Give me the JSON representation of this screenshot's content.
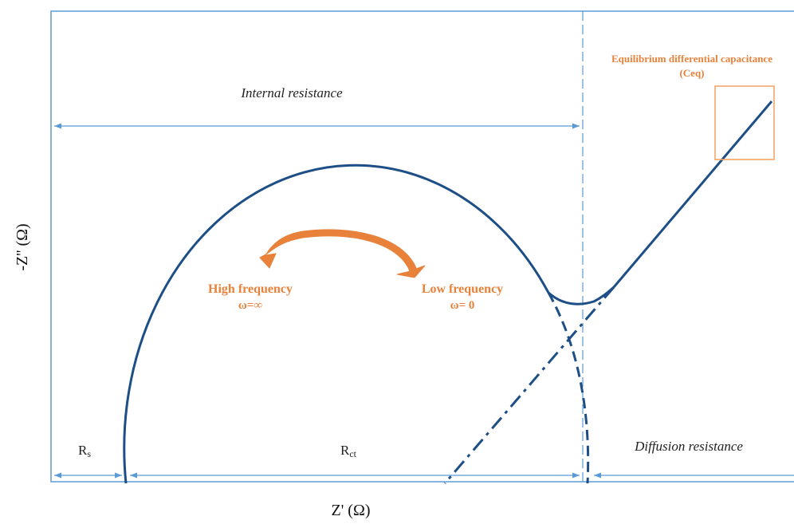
{
  "axes": {
    "x_label": "Z' (Ω)",
    "y_label": "-Z'' (Ω)"
  },
  "regions": {
    "internal_resistance": "Internal resistance",
    "diffusion_resistance": "Diffusion resistance",
    "rs": {
      "main": "R",
      "sub": "s"
    },
    "rct": {
      "main": "R",
      "sub": "ct"
    }
  },
  "frequency": {
    "omega": "ω",
    "high_label": "High frequency",
    "high_value": "ω=∞",
    "low_label": "Low frequency",
    "low_value": "ω= 0"
  },
  "capacitance": {
    "line1": "Equilibrium differential capacitance",
    "line2": "(Ceq)"
  },
  "colors": {
    "curve": "#1d4f86",
    "frame": "#5b9bd5",
    "accent": "#e8823b"
  }
}
